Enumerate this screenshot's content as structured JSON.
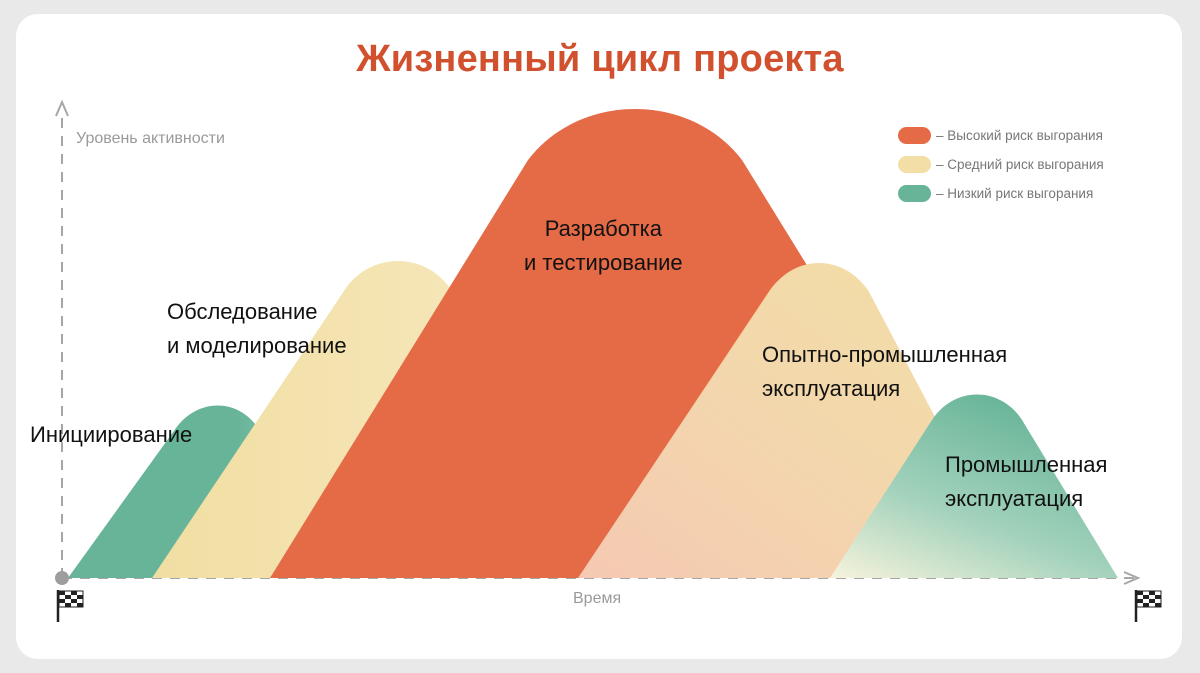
{
  "title": "Жизненный цикл проекта",
  "axes": {
    "y_label": "Уровень активности",
    "x_label": "Время"
  },
  "phases": [
    {
      "name": "Инициирование",
      "line1": "Инициирование",
      "risk": "low"
    },
    {
      "line1": "Обследование",
      "line2": "и моделирование",
      "risk": "medium"
    },
    {
      "line1": "Разработка",
      "line2": "и тестирование",
      "risk": "high"
    },
    {
      "line1": "Опытно-промышленная",
      "line2": "эксплуатация",
      "risk": "medium"
    },
    {
      "line1": "Промышленная",
      "line2": "эксплуатация",
      "risk": "low"
    }
  ],
  "legend": [
    {
      "label": "– Высокий риск выгорания",
      "color": "#e56a46"
    },
    {
      "label": "– Средний риск выгорания",
      "color": "#f3dfa5"
    },
    {
      "label": "– Низкий риск выгорания",
      "color": "#67b498"
    }
  ],
  "colors": {
    "title": "#d1512f",
    "high": "#e56a46",
    "medium": "#f3dfa5",
    "low": "#67b498",
    "axis": "#a6a6a6"
  },
  "icons": [
    "checkered-flag-icon",
    "checkered-flag-icon"
  ]
}
